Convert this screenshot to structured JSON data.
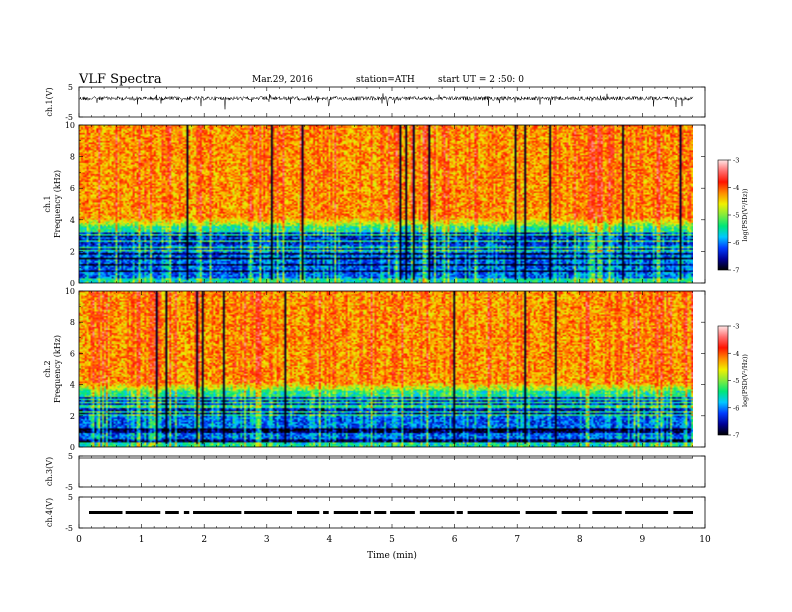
{
  "header": {
    "title": "VLF  Spectra",
    "date": "Mar.29, 2016",
    "station": "station=ATH",
    "start": "start  UT  =   2  :50: 0"
  },
  "chart_data": [
    {
      "panel": "ch1-waveform",
      "type": "line",
      "ylabel": "ch.1(V)",
      "yticks": [
        "5",
        "-5"
      ],
      "ylim": [
        -5,
        5
      ],
      "note": "noisy waveform with spikes, baseline near +1 V"
    },
    {
      "panel": "ch1-spectrogram",
      "type": "heatmap",
      "ylabel": "Frequency  (kHz)",
      "ylabel_channel": "ch.1",
      "yticks": [
        "0",
        "2",
        "4",
        "6",
        "8",
        "10"
      ],
      "ylim": [
        0,
        10
      ],
      "xlim": [
        0,
        9.8
      ],
      "colorbar": {
        "label": "log(PSD(V²/Hz))",
        "ticks": [
          "-3",
          "-4",
          "-5",
          "-6",
          "-7"
        ],
        "range": [
          -7,
          -3
        ]
      }
    },
    {
      "panel": "ch2-spectrogram",
      "type": "heatmap",
      "ylabel": "Frequency  (kHz)",
      "ylabel_channel": "ch.2",
      "yticks": [
        "0",
        "2",
        "4",
        "6",
        "8",
        "10"
      ],
      "ylim": [
        0,
        10
      ],
      "xlim": [
        0,
        9.8
      ],
      "colorbar": {
        "label": "log(PSD(V²/Hz))",
        "ticks": [
          "-3",
          "-4",
          "-5",
          "-6",
          "-7"
        ],
        "range": [
          -7,
          -3
        ]
      }
    },
    {
      "panel": "ch3-waveform",
      "type": "line",
      "ylabel": "ch.3(V)",
      "yticks": [
        "5",
        "-5"
      ],
      "ylim": [
        -5,
        5
      ],
      "note": "flat trace near +5 V"
    },
    {
      "panel": "ch4-waveform",
      "type": "line",
      "ylabel": "ch.4(V)",
      "yticks": [
        "5",
        "-5"
      ],
      "ylim": [
        -5,
        5
      ],
      "note": "dashed trace near 0 V"
    }
  ],
  "xaxis": {
    "label": "Time  (min)",
    "ticks": [
      "0",
      "1",
      "2",
      "3",
      "4",
      "5",
      "6",
      "7",
      "8",
      "9",
      "10"
    ],
    "range": [
      0,
      10
    ]
  }
}
